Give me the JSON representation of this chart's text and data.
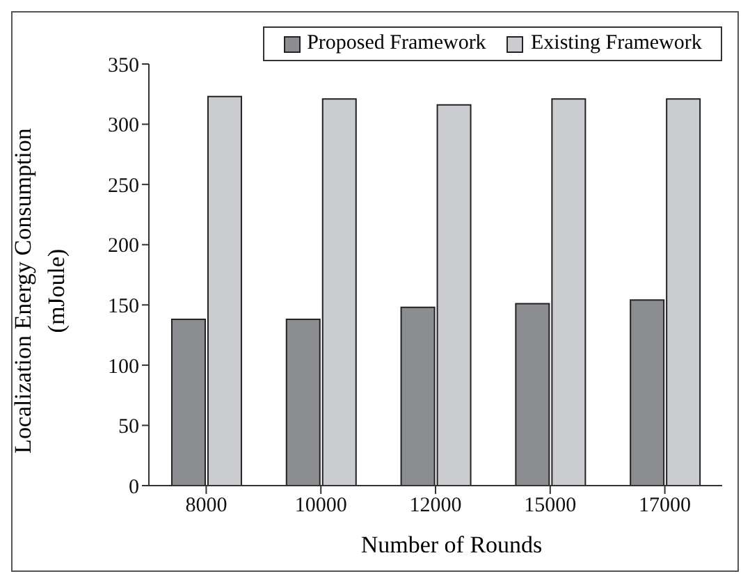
{
  "chart_data": {
    "type": "bar",
    "xlabel": "Number of Rounds",
    "ylabel": "Localization Energy Consumption (mJoule)",
    "categories": [
      "8000",
      "10000",
      "12000",
      "15000",
      "17000"
    ],
    "series": [
      {
        "name": "Proposed Framework",
        "color": "#8c8d91",
        "values": [
          138,
          138,
          148,
          151,
          154
        ]
      },
      {
        "name": "Existing Framework",
        "color": "#cbcccf",
        "values": [
          323,
          321,
          316,
          321,
          321
        ]
      }
    ],
    "ylim": [
      0,
      350
    ],
    "yticks": [
      0,
      50,
      100,
      150,
      200,
      250,
      300,
      350
    ],
    "grid": false,
    "legend": "top"
  }
}
